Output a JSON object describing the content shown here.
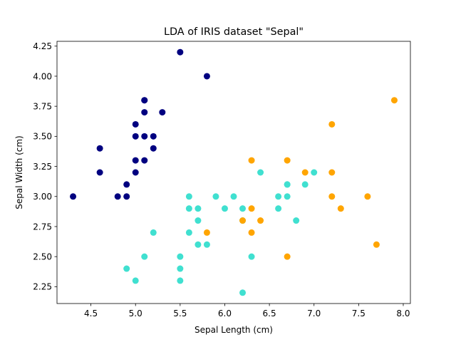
{
  "chart_data": {
    "type": "scatter",
    "title": "LDA of IRIS dataset \"Sepal\"",
    "xlabel": "Sepal Length (cm)",
    "ylabel": "Sepal Width (cm)",
    "xlim": [
      4.12,
      8.08
    ],
    "ylim": [
      2.11,
      4.29
    ],
    "xticks": [
      4.5,
      5.0,
      5.5,
      6.0,
      6.5,
      7.0,
      7.5,
      8.0
    ],
    "xtick_labels": [
      "4.5",
      "5.0",
      "5.5",
      "6.0",
      "6.5",
      "7.0",
      "7.5",
      "8.0"
    ],
    "yticks": [
      2.25,
      2.5,
      2.75,
      3.0,
      3.25,
      3.5,
      3.75,
      4.0,
      4.25
    ],
    "ytick_labels": [
      "2.25",
      "2.50",
      "2.75",
      "3.00",
      "3.25",
      "3.50",
      "3.75",
      "4.00",
      "4.25"
    ],
    "grid": false,
    "legend": false,
    "series": [
      {
        "color": "#000080",
        "x": [
          5.5,
          5.8,
          5.1,
          5.1,
          5.3,
          5.1,
          5.0,
          5.0,
          5.1,
          5.2,
          4.6,
          5.2,
          5.0,
          5.1,
          4.6,
          5.0,
          4.9,
          4.3,
          4.8,
          4.9
        ],
        "y": [
          4.2,
          4.0,
          3.8,
          3.8,
          3.7,
          3.7,
          3.6,
          3.5,
          3.5,
          3.5,
          3.4,
          3.4,
          3.3,
          3.3,
          3.2,
          3.2,
          3.1,
          3.0,
          3.0,
          3.0
        ]
      },
      {
        "color": "#40E0D0",
        "x": [
          6.4,
          6.7,
          6.9,
          5.6,
          5.9,
          6.1,
          6.6,
          6.7,
          5.6,
          5.7,
          6.0,
          6.2,
          6.6,
          5.7,
          6.2,
          6.8,
          5.2,
          5.6,
          5.7,
          5.8,
          5.1,
          5.5,
          6.3,
          4.9,
          5.5,
          5.0,
          5.5,
          6.2,
          7.0,
          6.7
        ],
        "y": [
          3.2,
          3.1,
          3.1,
          3.0,
          3.0,
          3.0,
          3.0,
          3.0,
          2.9,
          2.9,
          2.9,
          2.9,
          2.9,
          2.8,
          2.8,
          2.8,
          2.7,
          2.7,
          2.6,
          2.6,
          2.5,
          2.5,
          2.5,
          2.4,
          2.4,
          2.3,
          2.3,
          2.2,
          3.2,
          3.1
        ]
      },
      {
        "color": "#FFA500",
        "x": [
          7.9,
          7.2,
          6.3,
          6.7,
          6.9,
          7.2,
          7.2,
          7.6,
          6.3,
          7.3,
          6.2,
          6.4,
          5.8,
          6.3,
          7.7,
          6.7
        ],
        "y": [
          3.8,
          3.6,
          3.3,
          3.3,
          3.2,
          3.2,
          3.0,
          3.0,
          2.9,
          2.9,
          2.8,
          2.8,
          2.7,
          2.7,
          2.6,
          2.5
        ]
      }
    ]
  }
}
